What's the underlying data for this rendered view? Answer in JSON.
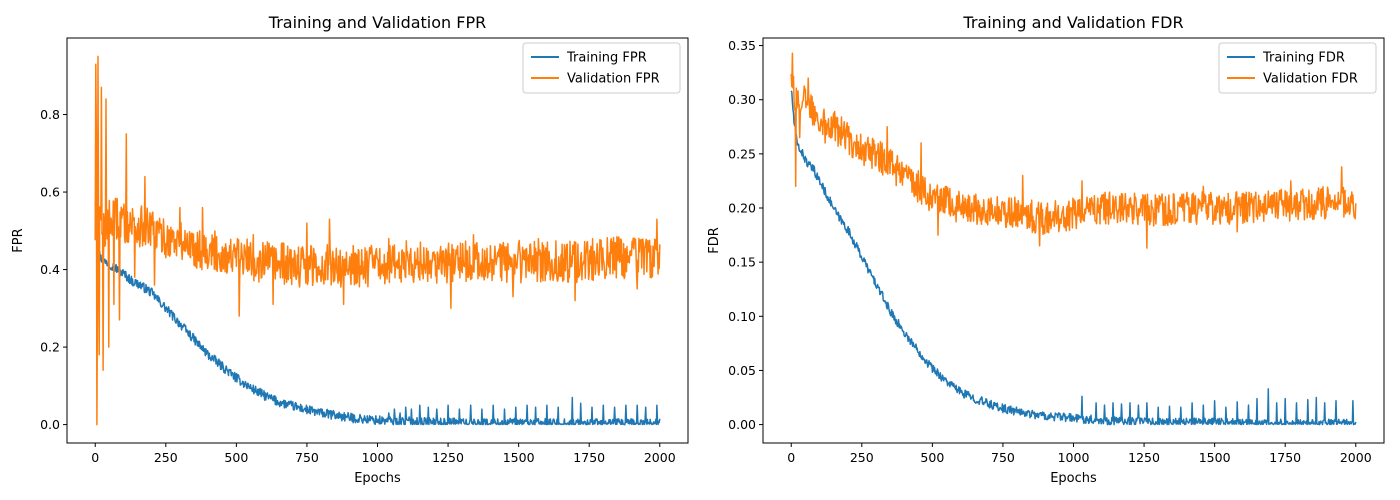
{
  "chart_data": [
    {
      "type": "line",
      "title": "Training and Validation FPR",
      "xlabel": "Epochs",
      "ylabel": "FPR",
      "xlim": [
        -100,
        2100
      ],
      "ylim": [
        -0.0475,
        0.9975
      ],
      "xticks": [
        0,
        250,
        500,
        750,
        1000,
        1250,
        1500,
        1750,
        2000
      ],
      "yticks": [
        0.0,
        0.2,
        0.4,
        0.6,
        0.8
      ],
      "ytick_labels": [
        "0.0",
        "0.2",
        "0.4",
        "0.6",
        "0.8"
      ],
      "legend_position": "top-right",
      "series": [
        {
          "name": "Training FPR",
          "color": "#1f77b4",
          "x": [
            0,
            5,
            10,
            20,
            30,
            40,
            60,
            80,
            100,
            130,
            160,
            200,
            250,
            300,
            350,
            400,
            450,
            500,
            550,
            600,
            650,
            700,
            750,
            800,
            850,
            900,
            950,
            1000,
            1050,
            1100,
            1200,
            1300,
            1400,
            1500,
            1600,
            1700,
            1800,
            1900,
            2000
          ],
          "y": [
            0.58,
            0.5,
            0.45,
            0.43,
            0.42,
            0.42,
            0.41,
            0.4,
            0.39,
            0.37,
            0.36,
            0.34,
            0.3,
            0.26,
            0.22,
            0.18,
            0.15,
            0.12,
            0.095,
            0.075,
            0.058,
            0.048,
            0.038,
            0.03,
            0.024,
            0.018,
            0.014,
            0.011,
            0.009,
            0.008,
            0.006,
            0.005,
            0.004,
            0.004,
            0.003,
            0.003,
            0.003,
            0.003,
            0.003
          ],
          "spikes": [
            [
              1040,
              0.03
            ],
            [
              1060,
              0.04
            ],
            [
              1080,
              0.03
            ],
            [
              1100,
              0.045
            ],
            [
              1120,
              0.04
            ],
            [
              1150,
              0.05
            ],
            [
              1180,
              0.045
            ],
            [
              1210,
              0.04
            ],
            [
              1250,
              0.05
            ],
            [
              1290,
              0.04
            ],
            [
              1330,
              0.05
            ],
            [
              1370,
              0.04
            ],
            [
              1410,
              0.05
            ],
            [
              1450,
              0.04
            ],
            [
              1490,
              0.045
            ],
            [
              1530,
              0.05
            ],
            [
              1560,
              0.045
            ],
            [
              1600,
              0.05
            ],
            [
              1640,
              0.045
            ],
            [
              1690,
              0.07
            ],
            [
              1720,
              0.055
            ],
            [
              1760,
              0.045
            ],
            [
              1800,
              0.05
            ],
            [
              1840,
              0.045
            ],
            [
              1880,
              0.05
            ],
            [
              1920,
              0.05
            ],
            [
              1950,
              0.045
            ],
            [
              1990,
              0.05
            ]
          ],
          "noise": 0.012
        },
        {
          "name": "Validation FPR",
          "color": "#ff7f0e",
          "x": [
            0,
            3,
            6,
            10,
            15,
            20,
            30,
            40,
            60,
            80,
            100,
            130,
            160,
            200,
            250,
            300,
            400,
            500,
            600,
            700,
            800,
            900,
            1000,
            1100,
            1200,
            1300,
            1400,
            1500,
            1600,
            1700,
            1800,
            1900,
            2000
          ],
          "y": [
            0.5,
            0.9,
            0.45,
            0.35,
            0.55,
            0.5,
            0.5,
            0.52,
            0.53,
            0.53,
            0.52,
            0.52,
            0.51,
            0.5,
            0.48,
            0.47,
            0.45,
            0.43,
            0.42,
            0.41,
            0.41,
            0.41,
            0.41,
            0.42,
            0.42,
            0.42,
            0.42,
            0.42,
            0.42,
            0.42,
            0.43,
            0.43,
            0.43
          ],
          "spikes": [
            [
              2,
              0.93
            ],
            [
              5,
              0.0
            ],
            [
              9,
              0.95
            ],
            [
              14,
              0.18
            ],
            [
              21,
              0.87
            ],
            [
              28,
              0.14
            ],
            [
              37,
              0.84
            ],
            [
              48,
              0.2
            ],
            [
              66,
              0.31
            ],
            [
              85,
              0.27
            ],
            [
              110,
              0.75
            ],
            [
              140,
              0.38
            ],
            [
              175,
              0.64
            ],
            [
              210,
              0.36
            ],
            [
              300,
              0.56
            ],
            [
              380,
              0.56
            ],
            [
              510,
              0.28
            ],
            [
              560,
              0.49
            ],
            [
              630,
              0.31
            ],
            [
              750,
              0.52
            ],
            [
              830,
              0.53
            ],
            [
              880,
              0.31
            ],
            [
              1040,
              0.48
            ],
            [
              1260,
              0.3
            ],
            [
              1340,
              0.49
            ],
            [
              1480,
              0.33
            ],
            [
              1570,
              0.48
            ],
            [
              1700,
              0.32
            ],
            [
              1920,
              0.35
            ],
            [
              1990,
              0.53
            ]
          ],
          "noise": 0.055
        }
      ]
    },
    {
      "type": "line",
      "title": "Training and Validation FDR",
      "xlabel": "Epochs",
      "ylabel": "FDR",
      "xlim": [
        -100,
        2100
      ],
      "ylim": [
        -0.017,
        0.357
      ],
      "xticks": [
        0,
        250,
        500,
        750,
        1000,
        1250,
        1500,
        1750,
        2000
      ],
      "yticks": [
        0.0,
        0.05,
        0.1,
        0.15,
        0.2,
        0.25,
        0.3,
        0.35
      ],
      "ytick_labels": [
        "0.00",
        "0.05",
        "0.10",
        "0.15",
        "0.20",
        "0.25",
        "0.30",
        "0.35"
      ],
      "legend_position": "top-right",
      "series": [
        {
          "name": "Training FDR",
          "color": "#1f77b4",
          "x": [
            0,
            10,
            20,
            40,
            60,
            80,
            100,
            130,
            160,
            200,
            250,
            300,
            350,
            400,
            450,
            500,
            550,
            600,
            650,
            700,
            750,
            800,
            850,
            900,
            950,
            1000,
            1100,
            1200,
            1300,
            1400,
            1500,
            1600,
            1700,
            1800,
            1900,
            2000
          ],
          "y": [
            0.31,
            0.28,
            0.26,
            0.25,
            0.24,
            0.235,
            0.225,
            0.21,
            0.195,
            0.18,
            0.155,
            0.13,
            0.105,
            0.085,
            0.068,
            0.052,
            0.04,
            0.03,
            0.024,
            0.019,
            0.015,
            0.012,
            0.01,
            0.008,
            0.007,
            0.006,
            0.004,
            0.003,
            0.002,
            0.002,
            0.002,
            0.001,
            0.001,
            0.001,
            0.001,
            0.001
          ],
          "spikes": [
            [
              1030,
              0.026
            ],
            [
              1080,
              0.02
            ],
            [
              1110,
              0.018
            ],
            [
              1140,
              0.02
            ],
            [
              1170,
              0.019
            ],
            [
              1200,
              0.02
            ],
            [
              1230,
              0.018
            ],
            [
              1260,
              0.02
            ],
            [
              1300,
              0.016
            ],
            [
              1340,
              0.017
            ],
            [
              1380,
              0.016
            ],
            [
              1420,
              0.02
            ],
            [
              1460,
              0.018
            ],
            [
              1500,
              0.022
            ],
            [
              1540,
              0.016
            ],
            [
              1580,
              0.021
            ],
            [
              1620,
              0.018
            ],
            [
              1650,
              0.024
            ],
            [
              1690,
              0.033
            ],
            [
              1720,
              0.02
            ],
            [
              1750,
              0.024
            ],
            [
              1790,
              0.02
            ],
            [
              1830,
              0.023
            ],
            [
              1860,
              0.025
            ],
            [
              1890,
              0.02
            ],
            [
              1930,
              0.022
            ],
            [
              1990,
              0.022
            ]
          ],
          "noise": 0.004
        },
        {
          "name": "Validation FDR",
          "color": "#ff7f0e",
          "x": [
            0,
            10,
            20,
            40,
            60,
            80,
            100,
            150,
            200,
            250,
            300,
            350,
            400,
            450,
            500,
            550,
            600,
            700,
            800,
            900,
            1000,
            1100,
            1200,
            1300,
            1400,
            1500,
            1600,
            1700,
            1800,
            1900,
            2000
          ],
          "y": [
            0.33,
            0.305,
            0.3,
            0.3,
            0.295,
            0.29,
            0.285,
            0.275,
            0.265,
            0.255,
            0.25,
            0.24,
            0.23,
            0.22,
            0.21,
            0.205,
            0.2,
            0.198,
            0.195,
            0.19,
            0.195,
            0.2,
            0.2,
            0.198,
            0.2,
            0.2,
            0.2,
            0.203,
            0.203,
            0.205,
            0.205
          ],
          "spikes": [
            [
              3,
              0.343
            ],
            [
              15,
              0.22
            ],
            [
              30,
              0.265
            ],
            [
              60,
              0.32
            ],
            [
              120,
              0.26
            ],
            [
              340,
              0.275
            ],
            [
              460,
              0.26
            ],
            [
              520,
              0.175
            ],
            [
              820,
              0.23
            ],
            [
              880,
              0.165
            ],
            [
              1030,
              0.225
            ],
            [
              1260,
              0.163
            ],
            [
              1460,
              0.22
            ],
            [
              1580,
              0.178
            ],
            [
              1770,
              0.225
            ],
            [
              1950,
              0.238
            ],
            [
              1990,
              0.212
            ]
          ],
          "noise": 0.015
        }
      ]
    }
  ]
}
